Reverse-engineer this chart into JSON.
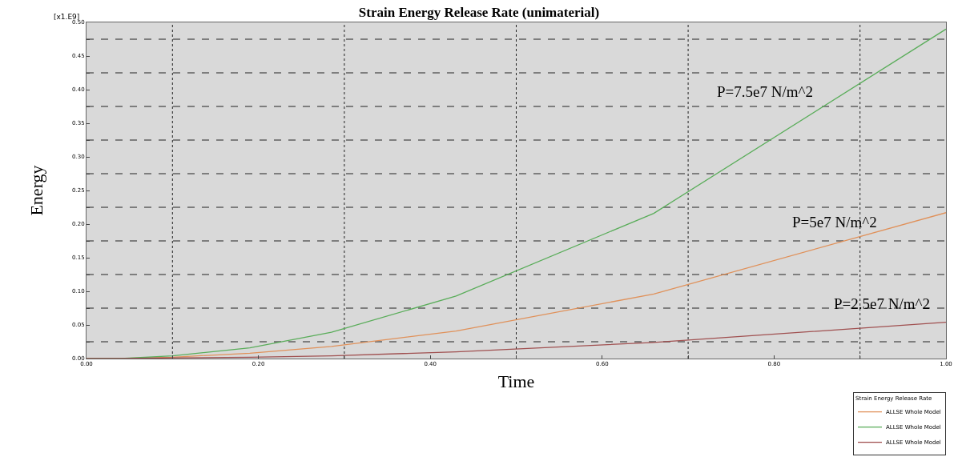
{
  "chart_data": {
    "type": "line",
    "title": "Strain Energy Release Rate (unimaterial)",
    "xlabel": "Time",
    "ylabel": "Energy",
    "legend_title": "Strain Energy Release Rate",
    "annotations": [
      "[x1.E9]",
      "P=7.5e7 N/m^2",
      "P=5e7 N/m^2",
      "P=2.5e7 N/m^2"
    ],
    "x": [
      0,
      0.04,
      0.1,
      0.19,
      0.285,
      0.43,
      0.66,
      1.0
    ],
    "series": [
      {
        "name": "ALLSE Whole Model",
        "color": "#e0915a",
        "values": [
          0,
          0,
          0.002,
          0.008,
          0.018,
          0.041,
          0.096,
          0.217
        ]
      },
      {
        "name": "ALLSE Whole Model",
        "color": "#5aad5a",
        "values": [
          0,
          0,
          0.004,
          0.016,
          0.039,
          0.093,
          0.216,
          0.49
        ]
      },
      {
        "name": "ALLSE Whole Model",
        "color": "#a05050",
        "values": [
          0,
          0,
          0.001,
          0.002,
          0.004,
          0.01,
          0.024,
          0.054
        ]
      }
    ],
    "xlim": [
      0,
      1
    ],
    "ylim": [
      0,
      0.5
    ],
    "xticks": [
      {
        "value": 0,
        "label": "0.00"
      },
      {
        "value": 0.1,
        "label": null
      },
      {
        "value": 0.2,
        "label": "0.20"
      },
      {
        "value": 0.3,
        "label": null
      },
      {
        "value": 0.4,
        "label": "0.40"
      },
      {
        "value": 0.5,
        "label": null
      },
      {
        "value": 0.6,
        "label": "0.60"
      },
      {
        "value": 0.7,
        "label": null
      },
      {
        "value": 0.8,
        "label": "0.80"
      },
      {
        "value": 0.9,
        "label": null
      },
      {
        "value": 1,
        "label": "1.00"
      }
    ],
    "yticks": [
      {
        "value": 0,
        "label": "0.00"
      },
      {
        "value": 0.025,
        "label": null
      },
      {
        "value": 0.05,
        "label": "0.05"
      },
      {
        "value": 0.075,
        "label": null
      },
      {
        "value": 0.1,
        "label": "0.10"
      },
      {
        "value": 0.125,
        "label": null
      },
      {
        "value": 0.15,
        "label": "0.15"
      },
      {
        "value": 0.175,
        "label": null
      },
      {
        "value": 0.2,
        "label": "0.20"
      },
      {
        "value": 0.225,
        "label": null
      },
      {
        "value": 0.25,
        "label": "0.25"
      },
      {
        "value": 0.275,
        "label": null
      },
      {
        "value": 0.3,
        "label": "0.30"
      },
      {
        "value": 0.325,
        "label": null
      },
      {
        "value": 0.35,
        "label": "0.35"
      },
      {
        "value": 0.375,
        "label": null
      },
      {
        "value": 0.4,
        "label": "0.40"
      },
      {
        "value": 0.425,
        "label": null
      },
      {
        "value": 0.45,
        "label": "0.45"
      },
      {
        "value": 0.475,
        "label": null
      },
      {
        "value": 0.5,
        "label": "0.50"
      }
    ],
    "grid": true,
    "legend": "bottom right",
    "marker": "none",
    "line_style": "solid"
  }
}
